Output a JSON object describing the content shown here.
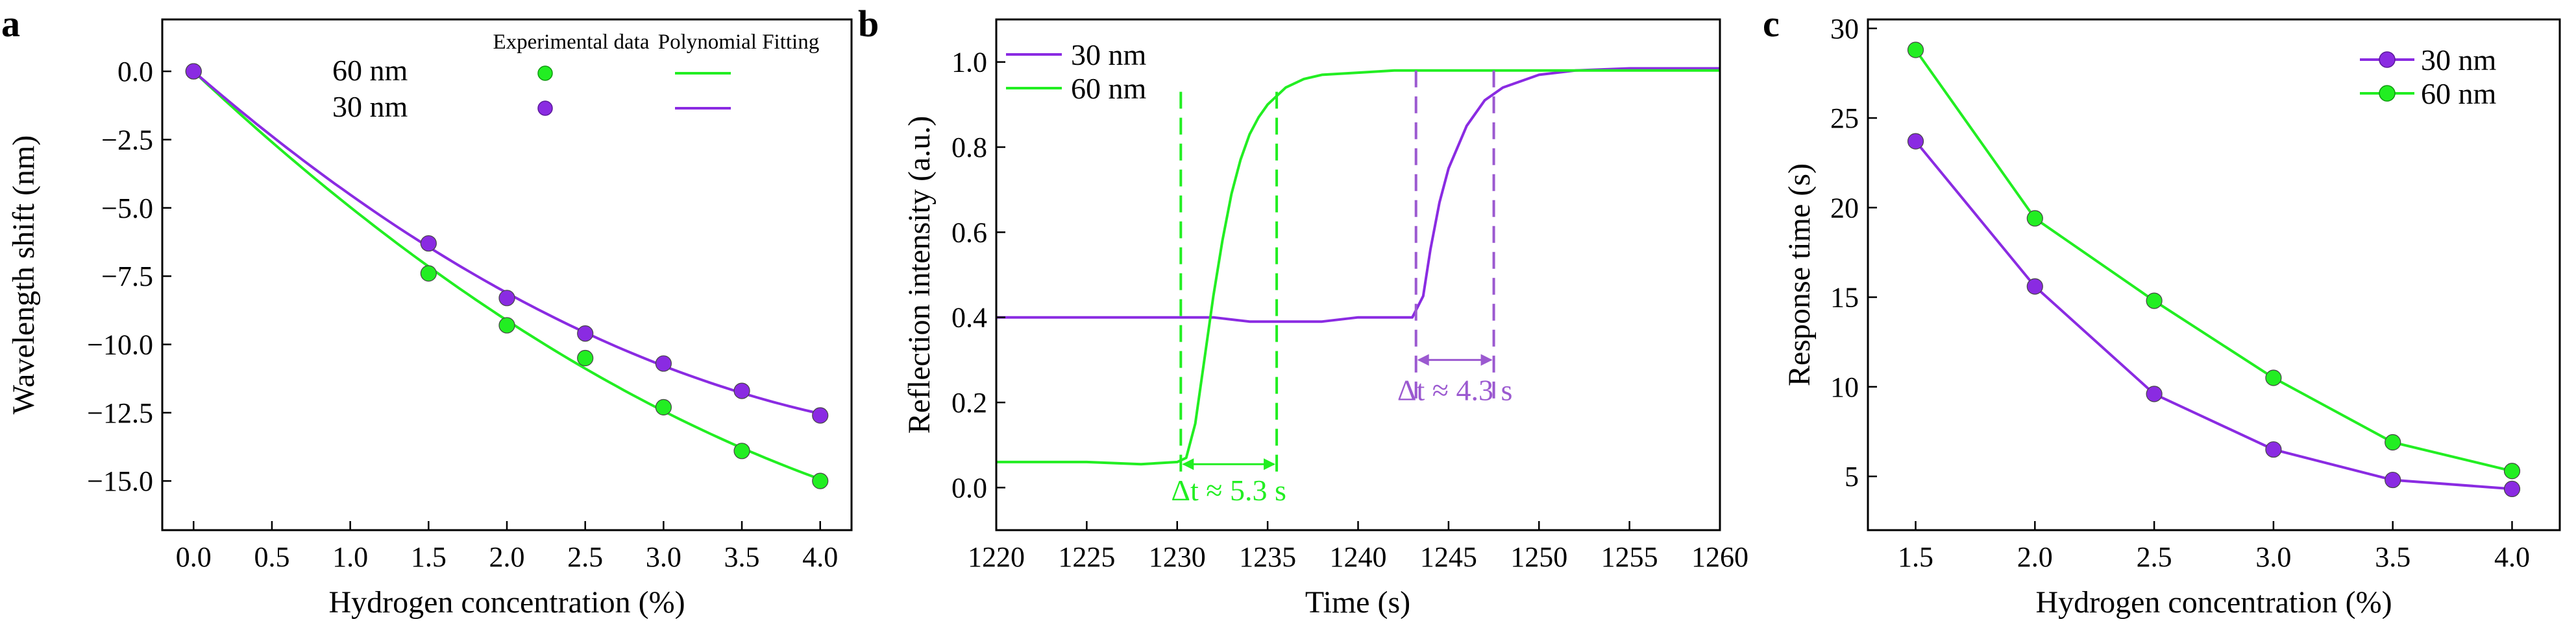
{
  "colors": {
    "green": "#22ee22",
    "purple": "#8a2be2",
    "purple_dash": "#9b59d0",
    "axis": "#000000"
  },
  "chart_data": [
    {
      "panel": "a",
      "type": "scatter",
      "xlabel": "Hydrogen concentration (%)",
      "ylabel": "Wavelength shift (nm)",
      "xlim": [
        -0.2,
        4.2
      ],
      "ylim": [
        -16.8,
        1.9
      ],
      "xticks": [
        "0.0",
        "0.5",
        "1.0",
        "1.5",
        "2.0",
        "2.5",
        "3.0",
        "3.5",
        "4.0"
      ],
      "yticks": [
        "0.0",
        "−2.5",
        "−5.0",
        "−7.5",
        "−10.0",
        "−12.5",
        "−15.0"
      ],
      "legend_headers": [
        "Experimental data",
        "Polynomial Fitting"
      ],
      "legend_placement": "top-right",
      "series": [
        {
          "name": "60 nm",
          "color": "#22ee22",
          "x": [
            0,
            1.5,
            2.0,
            2.5,
            3.0,
            3.5,
            4.0
          ],
          "y": [
            0,
            -7.4,
            -9.3,
            -10.5,
            -12.3,
            -13.9,
            -15.0
          ],
          "fit": "polynomial"
        },
        {
          "name": "30 nm",
          "color": "#8a2be2",
          "x": [
            0,
            1.5,
            2.0,
            2.5,
            3.0,
            3.5,
            4.0
          ],
          "y": [
            0,
            -6.3,
            -8.3,
            -9.6,
            -10.7,
            -11.7,
            -12.6
          ],
          "fit": "polynomial"
        }
      ]
    },
    {
      "panel": "b",
      "type": "line",
      "xlabel": "Time (s)",
      "ylabel": "Reflection intensity (a.u.)",
      "xlim": [
        1220,
        1260
      ],
      "ylim": [
        -0.1,
        1.1
      ],
      "xticks": [
        "1220",
        "1225",
        "1230",
        "1235",
        "1240",
        "1245",
        "1250",
        "1255",
        "1260"
      ],
      "yticks": [
        "0.0",
        "0.2",
        "0.4",
        "0.6",
        "0.8",
        "1.0"
      ],
      "legend_placement": "top-left",
      "series": [
        {
          "name": "30 nm",
          "color": "#8a2be2",
          "x": [
            1220,
            1226,
            1232,
            1234,
            1236,
            1238,
            1240,
            1242,
            1243,
            1243.6,
            1244,
            1244.5,
            1245,
            1246,
            1247,
            1248,
            1250,
            1252,
            1255,
            1260
          ],
          "y": [
            0.4,
            0.4,
            0.4,
            0.39,
            0.39,
            0.39,
            0.4,
            0.4,
            0.4,
            0.45,
            0.56,
            0.67,
            0.75,
            0.85,
            0.91,
            0.94,
            0.97,
            0.98,
            0.985,
            0.985
          ]
        },
        {
          "name": "60 nm",
          "color": "#22ee22",
          "x": [
            1220,
            1225,
            1228,
            1230,
            1230.5,
            1231,
            1231.5,
            1232,
            1232.5,
            1233,
            1233.5,
            1234,
            1234.5,
            1235,
            1236,
            1237,
            1238,
            1240,
            1242,
            1250,
            1260
          ],
          "y": [
            0.06,
            0.06,
            0.055,
            0.06,
            0.07,
            0.15,
            0.3,
            0.45,
            0.58,
            0.69,
            0.77,
            0.83,
            0.87,
            0.9,
            0.94,
            0.96,
            0.97,
            0.975,
            0.98,
            0.98,
            0.98
          ]
        }
      ],
      "annotations": [
        {
          "text": "Δt ≈ 5.3 s",
          "color": "#22ee22",
          "t_start": 1230.2,
          "t_end": 1235.5
        },
        {
          "text": "Δt ≈ 4.3 s",
          "color": "#9b59d0",
          "t_start": 1243.2,
          "t_end": 1247.5
        }
      ]
    },
    {
      "panel": "c",
      "type": "line",
      "xlabel": "Hydrogen concentration (%)",
      "ylabel": "Response time (s)",
      "xlim": [
        1.3,
        4.2
      ],
      "ylim": [
        2,
        30.5
      ],
      "xticks": [
        "1.5",
        "2.0",
        "2.5",
        "3.0",
        "3.5",
        "4.0"
      ],
      "yticks": [
        "5",
        "10",
        "15",
        "20",
        "25",
        "30"
      ],
      "legend_placement": "top-right",
      "series": [
        {
          "name": "30 nm",
          "color": "#8a2be2",
          "x": [
            1.5,
            2.0,
            2.5,
            3.0,
            3.5,
            4.0
          ],
          "y": [
            23.7,
            15.6,
            9.6,
            6.5,
            4.8,
            4.3
          ]
        },
        {
          "name": "60 nm",
          "color": "#22ee22",
          "x": [
            1.5,
            2.0,
            2.5,
            3.0,
            3.5,
            4.0
          ],
          "y": [
            28.8,
            19.4,
            14.8,
            10.5,
            6.9,
            5.3
          ]
        }
      ]
    }
  ]
}
